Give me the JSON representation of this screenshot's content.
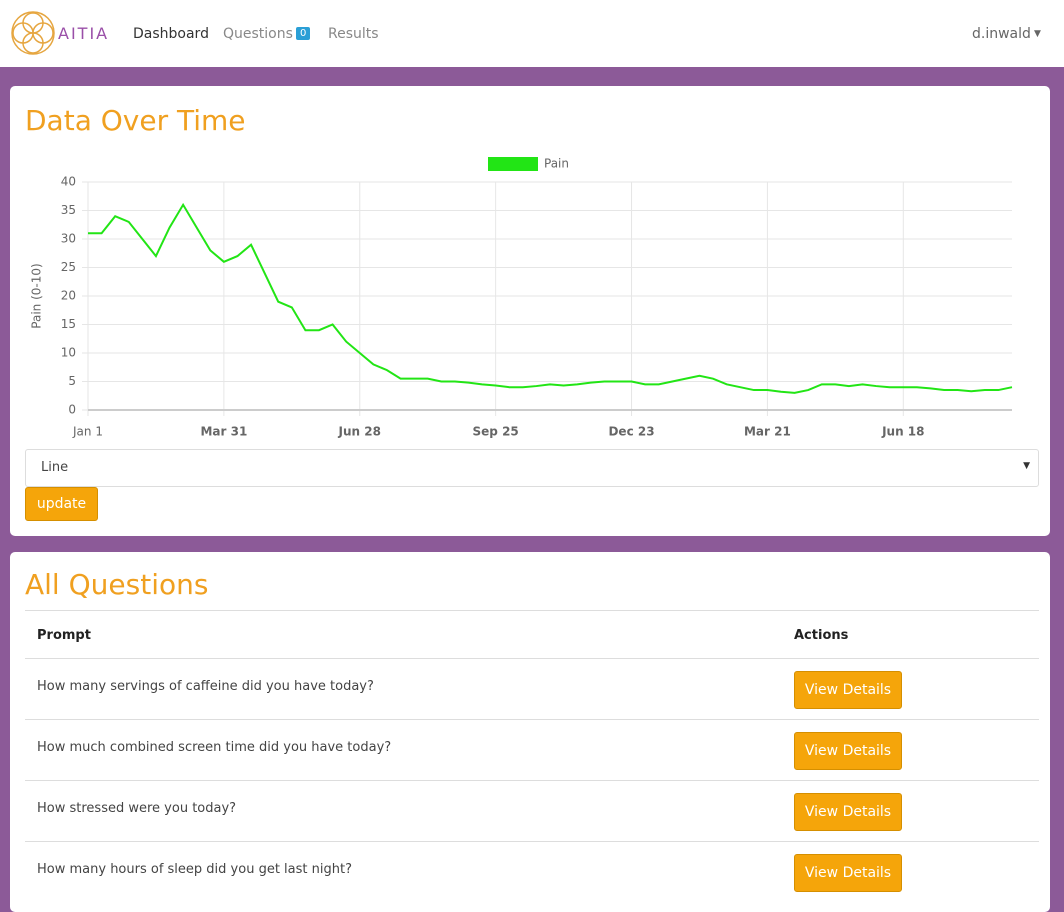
{
  "nav": {
    "brand": "AITIA",
    "items": [
      "Dashboard",
      "Questions",
      "Results"
    ],
    "questions_badge": 0,
    "user": "d.inwald"
  },
  "chart_section": {
    "title": "Data Over Time",
    "select_value": "Line",
    "button": "update"
  },
  "chart_data": {
    "type": "line",
    "y_label": "Pain (0-10)",
    "categories": [
      "Jan 1",
      null,
      null,
      null,
      null,
      null,
      null,
      null,
      null,
      null,
      "Mar 31",
      null,
      null,
      null,
      null,
      null,
      null,
      null,
      null,
      null,
      "Jun 28",
      null,
      null,
      null,
      null,
      null,
      null,
      null,
      null,
      null,
      "Sep 25",
      null,
      null,
      null,
      null,
      null,
      null,
      null,
      null,
      null,
      "Dec 23",
      null,
      null,
      null,
      null,
      null,
      null,
      null,
      null,
      null,
      "Mar 21",
      null,
      null,
      null,
      null,
      null,
      null,
      null,
      null,
      null,
      "Jun 18",
      null,
      null,
      null,
      null,
      null,
      null,
      null,
      null
    ],
    "series": [
      {
        "name": "Pain",
        "color": "#22e515",
        "values": [
          31,
          31,
          34,
          33,
          30,
          27,
          32,
          36,
          32,
          28,
          26,
          27,
          29,
          24,
          19,
          18,
          14,
          14,
          15,
          12,
          10,
          8,
          7,
          5.5,
          5.5,
          5.5,
          5,
          5,
          4.8,
          4.5,
          4.3,
          4,
          4,
          4.2,
          4.5,
          4.3,
          4.5,
          4.8,
          5,
          5,
          5,
          4.5,
          4.5,
          5,
          5.5,
          6,
          5.5,
          4.5,
          4,
          3.5,
          3.5,
          3.2,
          3,
          3.5,
          4.5,
          4.5,
          4.2,
          4.5,
          4.2,
          4,
          4,
          4,
          3.8,
          3.5,
          3.5,
          3.3,
          3.5,
          3.5,
          4
        ]
      }
    ],
    "ylim": [
      0,
      40
    ],
    "yticks": [
      0,
      5,
      10,
      15,
      20,
      25,
      30,
      35,
      40
    ],
    "grid": true,
    "legend": "top"
  },
  "questions": {
    "title": "All Questions",
    "columns": [
      "Prompt",
      "Actions"
    ],
    "rows": [
      [
        "How many servings of caffeine did you have today?",
        "View Details"
      ],
      [
        "How much combined screen time did you have today?",
        "View Details"
      ],
      [
        "How stressed were you today?",
        "View Details"
      ],
      [
        "How many hours of sleep did you get last night?",
        "View Details"
      ]
    ]
  }
}
